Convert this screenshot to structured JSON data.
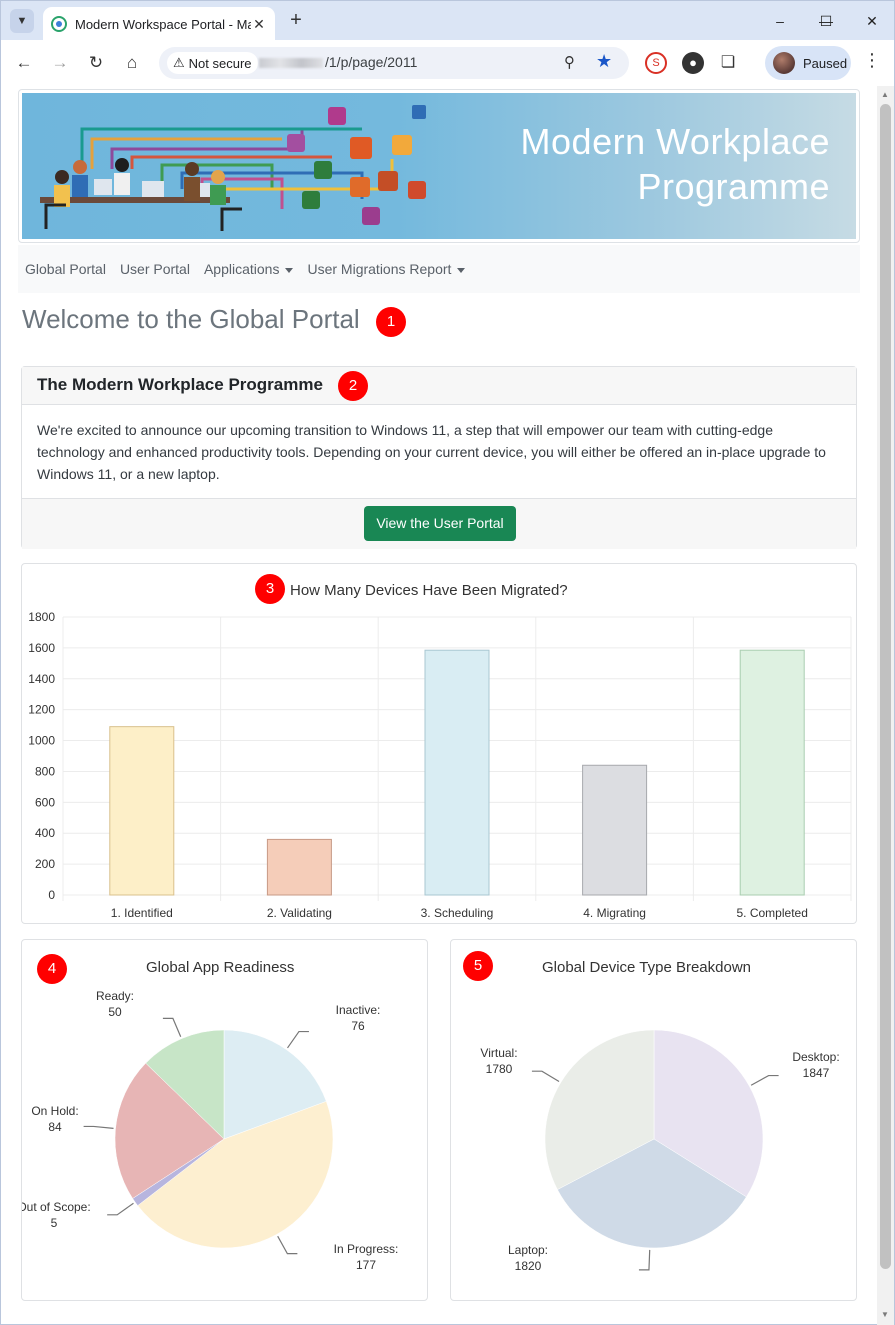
{
  "browser": {
    "tab_title": "Modern Workspace Portal - Ma",
    "security_label": "Not secure",
    "url_path": "/1/p/page/2011",
    "profile_label": "Paused"
  },
  "banner": {
    "title_line1": "Modern Workplace",
    "title_line2": "Programme"
  },
  "nav": {
    "items": [
      {
        "label": "Global Portal"
      },
      {
        "label": "User Portal"
      },
      {
        "label": "Applications"
      },
      {
        "label": "User Migrations Report"
      }
    ]
  },
  "page": {
    "heading": "Welcome to the Global Portal"
  },
  "markers": [
    "1",
    "2",
    "3",
    "4",
    "5"
  ],
  "programme_card": {
    "header": "The Modern Workplace Programme",
    "body": "We're excited to announce our upcoming transition to Windows 11, a step that will empower our team with cutting-edge technology and enhanced productivity tools. Depending on your current device, you will either be offered an in-place upgrade to Windows 11, or a new laptop.",
    "button_label": "View the User Portal"
  },
  "colors": {
    "accent_green": "#198754",
    "marker_red": "#ff0000"
  },
  "chart_data": [
    {
      "type": "bar",
      "title": "How Many Devices Have Been Migrated?",
      "categories": [
        "1. Identified",
        "2. Validating",
        "3. Scheduling",
        "4. Migrating",
        "5. Completed"
      ],
      "values": [
        1090,
        360,
        1585,
        840,
        1585
      ],
      "fills": [
        "#fdefc8",
        "#f5cdb9",
        "#d9edf3",
        "#dcdde1",
        "#def1e1"
      ],
      "strokes": [
        "#d9c08c",
        "#c79a86",
        "#a9c7d1",
        "#a7a9ad",
        "#a9cdb0"
      ],
      "ylim": [
        0,
        1800
      ],
      "yticks": [
        0,
        200,
        400,
        600,
        800,
        1000,
        1200,
        1400,
        1600,
        1800
      ],
      "xlabel": "",
      "ylabel": "",
      "grid": true
    },
    {
      "type": "pie",
      "title": "Global App Readiness",
      "labels": [
        "Inactive:",
        "In Progress:",
        "Out of Scope:",
        "On Hold:",
        "Ready:"
      ],
      "values": [
        76,
        177,
        5,
        84,
        50
      ],
      "colors": [
        "#ddedf3",
        "#fdefd0",
        "#b7b5de",
        "#e7b5b5",
        "#c7e5c7"
      ]
    },
    {
      "type": "pie",
      "title": "Global Device Type Breakdown",
      "labels": [
        "Desktop:",
        "Laptop:",
        "Virtual:"
      ],
      "values": [
        1847,
        1820,
        1780
      ],
      "colors": [
        "#e8e3f1",
        "#cfdae7",
        "#eaede8"
      ]
    }
  ]
}
